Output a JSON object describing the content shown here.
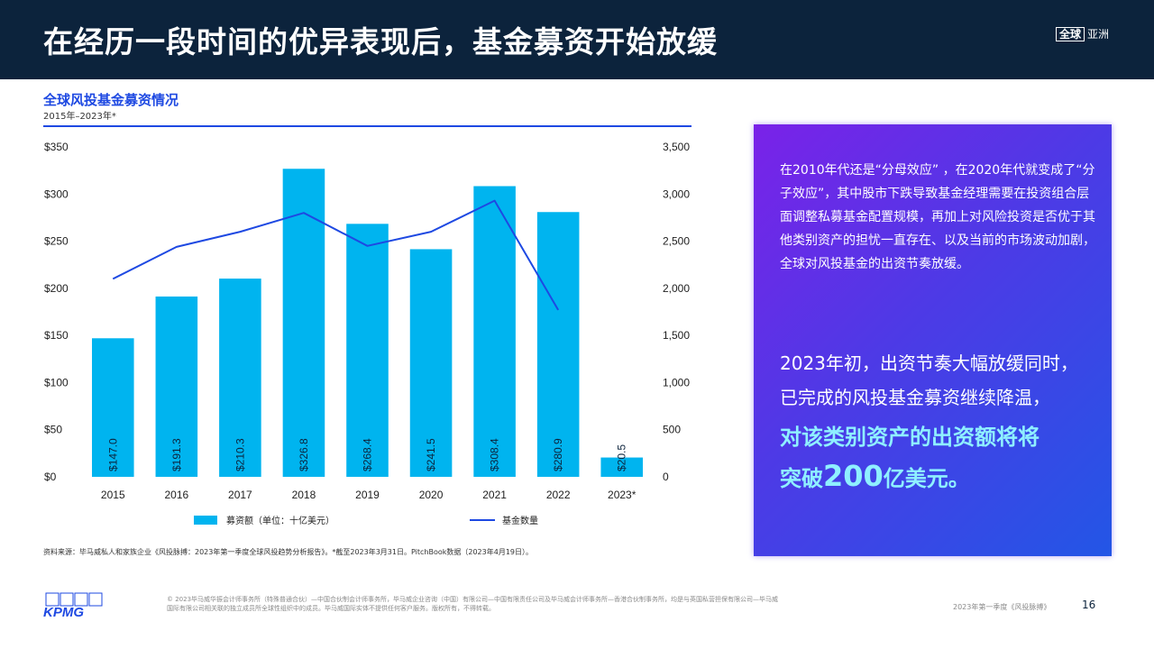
{
  "header": {
    "title": "在经历一段时间的优异表现后，基金募资开始放缓",
    "brand_box": "全球",
    "brand_text": "亚洲"
  },
  "chart_data": {
    "type": "bar",
    "title": "全球风投基金募资情况",
    "subtitle": "2015年–2023年*",
    "categories": [
      "2015",
      "2016",
      "2017",
      "2018",
      "2019",
      "2020",
      "2021",
      "2022",
      "2023*"
    ],
    "series": [
      {
        "name": "募资额（单位：十亿美元）",
        "type": "bar",
        "axis": "left",
        "color": "#00b4ef",
        "values": [
          147.0,
          191.3,
          210.3,
          326.8,
          268.4,
          241.5,
          308.4,
          280.9,
          20.5
        ],
        "labels": [
          "$147.0",
          "$191.3",
          "$210.3",
          "$326.8",
          "$268.4",
          "$241.5",
          "$308.4",
          "$280.9",
          "$20.5"
        ]
      },
      {
        "name": "基金数量",
        "type": "line",
        "axis": "right",
        "color": "#1e49e2",
        "values": [
          2100,
          2440,
          2600,
          2800,
          2450,
          2600,
          2930,
          1770,
          null
        ]
      }
    ],
    "y_left": {
      "ylim": [
        0,
        350
      ],
      "ticks": [
        "$0",
        "$50",
        "$100",
        "$150",
        "$200",
        "$250",
        "$300",
        "$350"
      ]
    },
    "y_right": {
      "ylim": [
        0,
        3500
      ],
      "ticks": [
        "0",
        "500",
        "1,000",
        "1,500",
        "2,000",
        "2,500",
        "3,000",
        "3,500"
      ]
    },
    "legend_position": "bottom",
    "grid": false
  },
  "source": "资料来源：毕马威私人和家族企业《风投脉搏：2023年第一季度全球风投趋势分析报告》。*截至2023年3月31日。PitchBook数据（2023年4月19日）。",
  "panel": {
    "p1": "在2010年代还是“分母效应” ，在2020年代就变成了“分子效应”，其中股市下跌导致基金经理需要在投资组合层面调整私募基金配置规模，再加上对风险投资是否优于其他类别资产的担忧一直存在、以及当前的市场波动加剧，全球对风投基金的出资节奏放缓。",
    "p2_line1": "2023年初，出资节奏大幅放缓同时，",
    "p2_line2": "已完成的风投基金募资继续降温，",
    "p3_line1": "对该类别资产的出资额将将",
    "p3_pre": "突破",
    "p3_num": "200",
    "p3_post": "亿美元。"
  },
  "footer": {
    "logo": "KPMG",
    "legal": "© 2023毕马威华振会计师事务所（特殊普通合伙）—中国合伙制会计师事务所，毕马威企业咨询（中国）有限公司—中国有限责任公司及毕马威会计师事务所—香港合伙制事务所，均是与英国私营担保有限公司—毕马威国际有限公司相关联的独立成员所全球性组织中的成员。毕马威国际实体不提供任何客户服务。版权所有，不得转载。",
    "report": "2023年第一季度《风投脉搏》",
    "page": "16"
  }
}
